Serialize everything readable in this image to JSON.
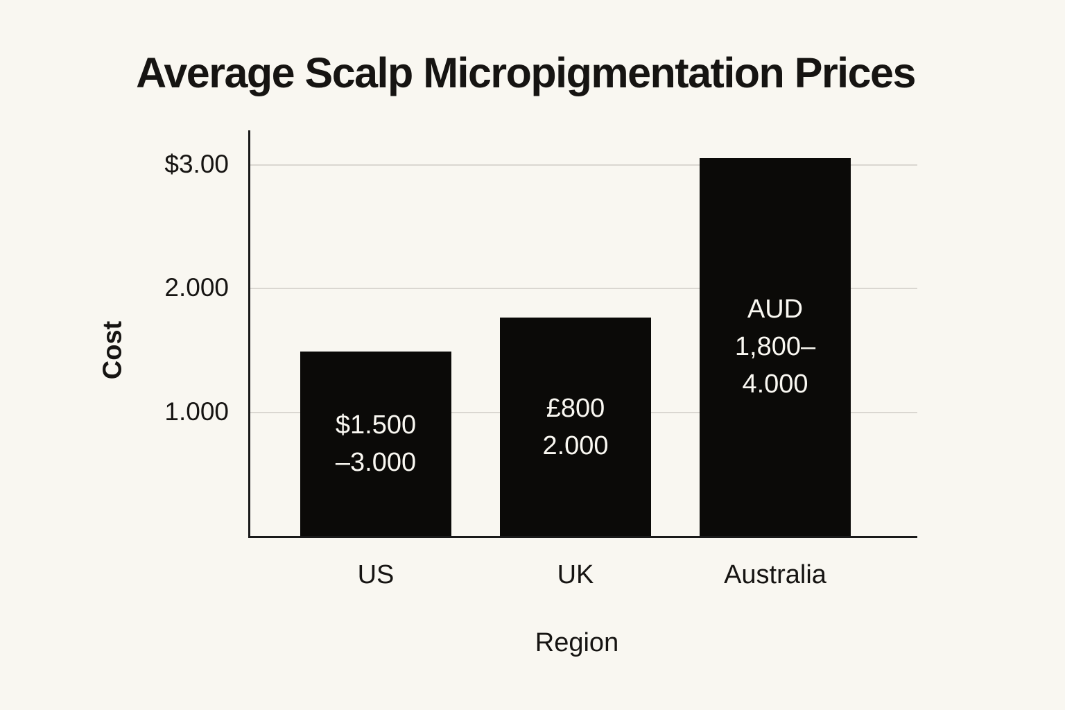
{
  "title": "Average Scalp Micropigmentation Prices",
  "chart_data": {
    "type": "bar",
    "title": "Average Scalp Micropigmentation Prices",
    "xlabel": "Region",
    "ylabel": "Cost",
    "categories": [
      "US",
      "UK",
      "Australia"
    ],
    "values": [
      1.49,
      1.76,
      3.05
    ],
    "bar_labels": [
      "$1.500\n–3.000",
      "£800\n2.000",
      "AUD\n1,800–\n4.000"
    ],
    "y_ticks": [
      {
        "label": "$3.00",
        "value": 3
      },
      {
        "label": "2.000",
        "value": 2
      },
      {
        "label": "1.000",
        "value": 1
      }
    ],
    "ylim": [
      0,
      3.272
    ],
    "grid": "horizontal-only",
    "legend": "none",
    "bar_color": "#0B0A08"
  },
  "colors": {
    "background": "#F9F7F1",
    "bar": "#0B0A08",
    "bar_label": "#FAF8F2",
    "axis": "#1A1A1A",
    "gridline": "#DAD7D1",
    "text": "#161412"
  }
}
